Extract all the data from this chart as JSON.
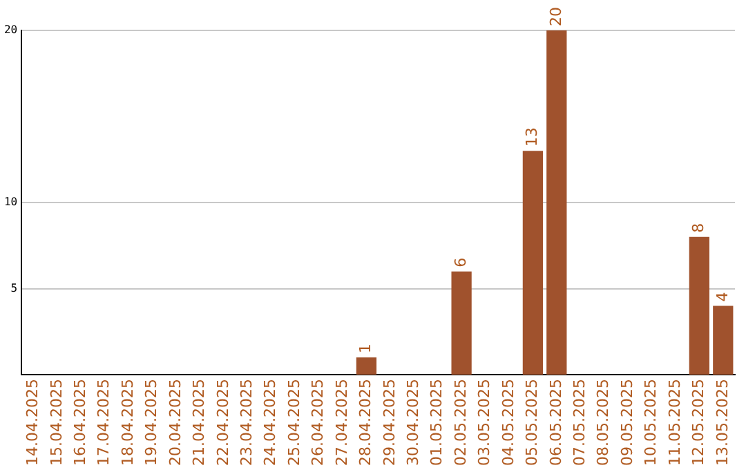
{
  "chart_data": {
    "type": "bar",
    "categories": [
      "14.04.2025",
      "15.04.2025",
      "16.04.2025",
      "17.04.2025",
      "18.04.2025",
      "19.04.2025",
      "20.04.2025",
      "21.04.2025",
      "22.04.2025",
      "23.04.2025",
      "24.04.2025",
      "25.04.2025",
      "26.04.2025",
      "27.04.2025",
      "28.04.2025",
      "29.04.2025",
      "30.04.2025",
      "01.05.2025",
      "02.05.2025",
      "03.05.2025",
      "04.05.2025",
      "05.05.2025",
      "06.05.2025",
      "07.05.2025",
      "08.05.2025",
      "09.05.2025",
      "10.05.2025",
      "11.05.2025",
      "12.05.2025",
      "13.05.2025"
    ],
    "values": [
      null,
      null,
      null,
      null,
      null,
      null,
      null,
      null,
      null,
      null,
      null,
      null,
      null,
      null,
      1,
      null,
      null,
      null,
      6,
      null,
      null,
      13,
      20,
      null,
      null,
      null,
      null,
      null,
      8,
      4
    ],
    "color": "#a0522d",
    "ylim": [
      0,
      20
    ],
    "yticks": [
      5,
      10,
      20
    ],
    "grid": "y",
    "data_labels": true,
    "legend": false
  }
}
